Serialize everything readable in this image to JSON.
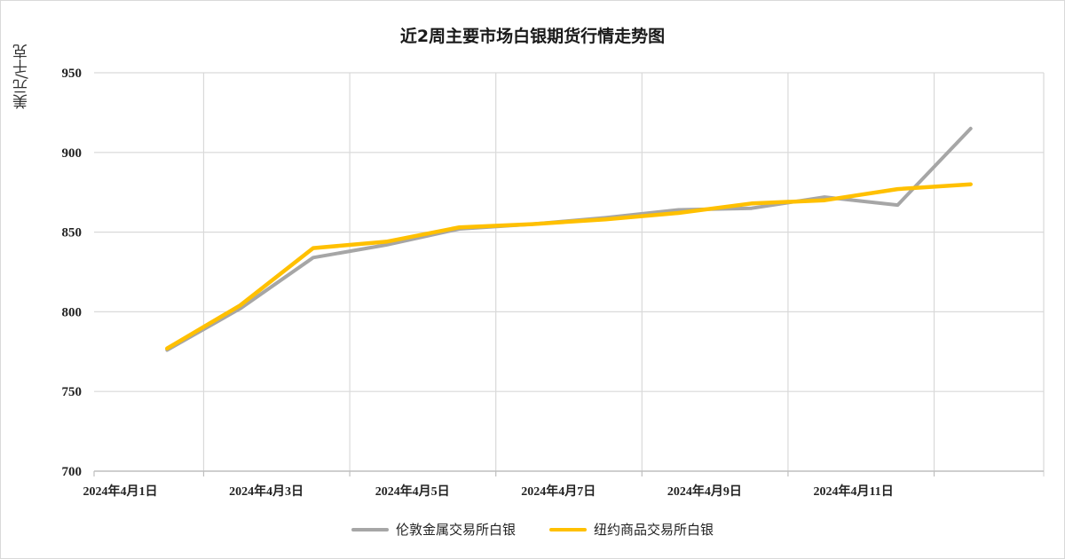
{
  "chart_data": {
    "type": "line",
    "title": "近2周主要市场白银期货行情走势图",
    "ylabel": "美元/千克",
    "xlabel": "",
    "ylim": [
      700,
      950
    ],
    "yticks": [
      700,
      750,
      800,
      850,
      900,
      950
    ],
    "xlim": [
      "2024-03-31",
      "2024-04-13"
    ],
    "x_tick_labels": [
      "2024年4月1日",
      "2024年4月3日",
      "2024年4月5日",
      "2024年4月7日",
      "2024年4月9日",
      "2024年4月11日"
    ],
    "x_tick_dates": [
      "2024-04-01",
      "2024-04-03",
      "2024-04-05",
      "2024-04-07",
      "2024-04-09",
      "2024-04-11"
    ],
    "grid": true,
    "legend_position": "bottom",
    "series": [
      {
        "name": "伦敦金属交易所白银",
        "color": "#a6a6a6",
        "x": [
          "2024-04-01",
          "2024-04-02",
          "2024-04-03",
          "2024-04-04",
          "2024-04-05",
          "2024-04-06",
          "2024-04-07",
          "2024-04-08",
          "2024-04-09",
          "2024-04-10",
          "2024-04-11",
          "2024-04-12"
        ],
        "values": [
          776,
          802,
          834,
          842,
          852,
          855,
          859,
          864,
          865,
          872,
          867,
          915
        ]
      },
      {
        "name": "纽约商品交易所白银",
        "color": "#ffc000",
        "x": [
          "2024-04-01",
          "2024-04-02",
          "2024-04-03",
          "2024-04-04",
          "2024-04-05",
          "2024-04-06",
          "2024-04-07",
          "2024-04-08",
          "2024-04-09",
          "2024-04-10",
          "2024-04-11",
          "2024-04-12"
        ],
        "values": [
          777,
          804,
          840,
          844,
          853,
          855,
          858,
          862,
          868,
          870,
          877,
          880
        ]
      }
    ]
  }
}
